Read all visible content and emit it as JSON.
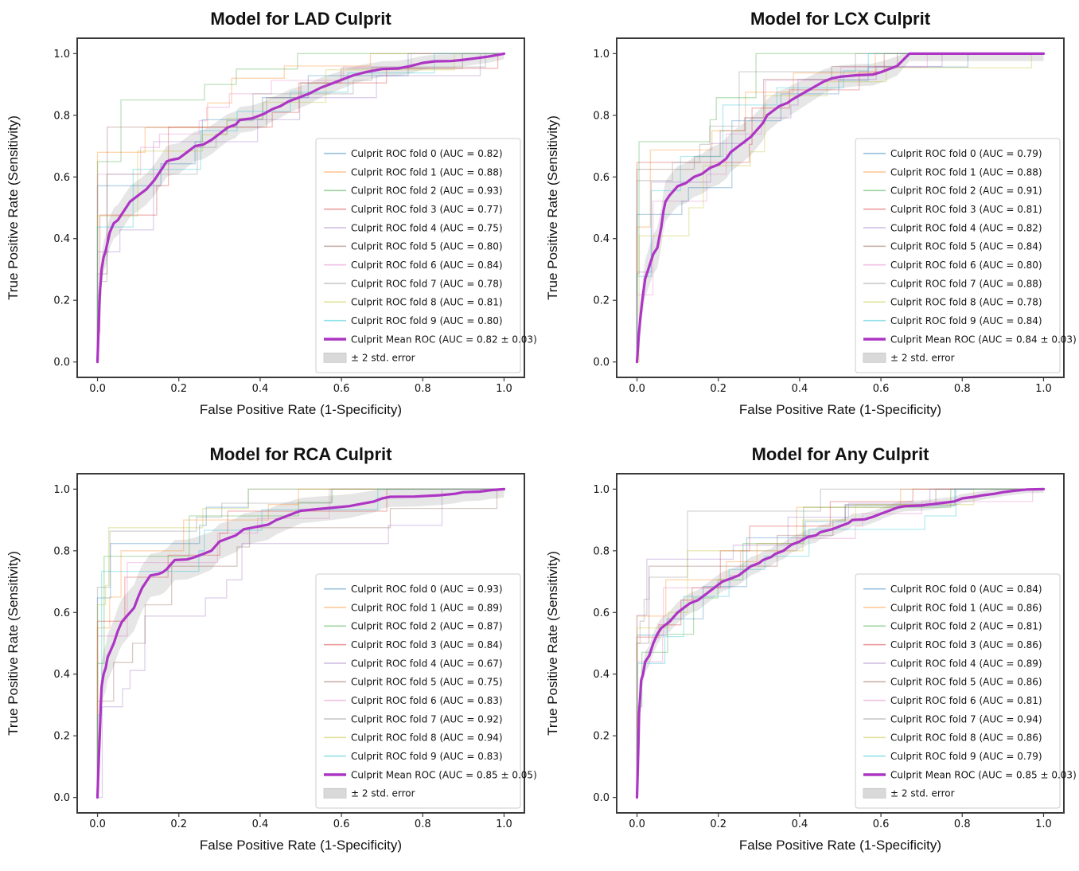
{
  "figure": {
    "background": "#ffffff",
    "tick_labels": [
      "0.0",
      "0.2",
      "0.4",
      "0.6",
      "0.8",
      "1.0"
    ],
    "tick_values": [
      0,
      0.2,
      0.4,
      0.6,
      0.8,
      1.0
    ],
    "colors": {
      "fold_palette": [
        "#1f77b4",
        "#ff7f0e",
        "#2ca02c",
        "#d62728",
        "#9467bd",
        "#8c564b",
        "#e377c2",
        "#7f7f7f",
        "#bcbd22",
        "#17becf"
      ],
      "mean_line": "#ad35c4",
      "band_fill": "#c3c3c3",
      "legend_band_swatch": "#d9d9d9",
      "spine": "#3a3a3a",
      "text": "#111111",
      "legend_border": "#cccccc"
    }
  },
  "chart_data": [
    {
      "type": "line",
      "title": "Model for LAD Culprit",
      "xlabel": "False Positive Rate (1-Specificity)",
      "ylabel": "True Positive Rate (Sensitivity)",
      "xlim": [
        -0.05,
        1.05
      ],
      "ylim": [
        -0.05,
        1.05
      ],
      "grid": false,
      "legend_position": "lower right",
      "folds": [
        {
          "label": "Culprit ROC fold 0 (AUC = 0.82)",
          "auc": 0.82
        },
        {
          "label": "Culprit ROC fold 1 (AUC = 0.88)",
          "auc": 0.88
        },
        {
          "label": "Culprit ROC fold 2 (AUC = 0.93)",
          "auc": 0.93
        },
        {
          "label": "Culprit ROC fold 3 (AUC = 0.77)",
          "auc": 0.77
        },
        {
          "label": "Culprit ROC fold 4 (AUC = 0.75)",
          "auc": 0.75
        },
        {
          "label": "Culprit ROC fold 5 (AUC = 0.80)",
          "auc": 0.8
        },
        {
          "label": "Culprit ROC fold 6 (AUC = 0.84)",
          "auc": 0.84
        },
        {
          "label": "Culprit ROC fold 7 (AUC = 0.78)",
          "auc": 0.78
        },
        {
          "label": "Culprit ROC fold 8 (AUC = 0.81)",
          "auc": 0.81
        },
        {
          "label": "Culprit ROC fold 9 (AUC = 0.80)",
          "auc": 0.8
        }
      ],
      "mean": {
        "label": "Culprit Mean ROC (AUC = 0.82 ± 0.03)",
        "auc": 0.82,
        "std": 0.03,
        "curve": [
          [
            0,
            0
          ],
          [
            0.004,
            0.16
          ],
          [
            0.006,
            0.23
          ],
          [
            0.01,
            0.3
          ],
          [
            0.015,
            0.34
          ],
          [
            0.02,
            0.36
          ],
          [
            0.03,
            0.42
          ],
          [
            0.04,
            0.45
          ],
          [
            0.05,
            0.46
          ],
          [
            0.06,
            0.48
          ],
          [
            0.07,
            0.5
          ],
          [
            0.08,
            0.52
          ],
          [
            0.1,
            0.54
          ],
          [
            0.12,
            0.56
          ],
          [
            0.13,
            0.575
          ],
          [
            0.14,
            0.59
          ],
          [
            0.15,
            0.61
          ],
          [
            0.16,
            0.63
          ],
          [
            0.17,
            0.65
          ],
          [
            0.18,
            0.655
          ],
          [
            0.2,
            0.66
          ],
          [
            0.22,
            0.68
          ],
          [
            0.24,
            0.7
          ],
          [
            0.26,
            0.705
          ],
          [
            0.28,
            0.72
          ],
          [
            0.3,
            0.74
          ],
          [
            0.32,
            0.76
          ],
          [
            0.34,
            0.77
          ],
          [
            0.35,
            0.785
          ],
          [
            0.38,
            0.79
          ],
          [
            0.41,
            0.805
          ],
          [
            0.43,
            0.82
          ],
          [
            0.45,
            0.83
          ],
          [
            0.47,
            0.845
          ],
          [
            0.5,
            0.86
          ],
          [
            0.52,
            0.87
          ],
          [
            0.55,
            0.89
          ],
          [
            0.58,
            0.905
          ],
          [
            0.6,
            0.915
          ],
          [
            0.63,
            0.93
          ],
          [
            0.66,
            0.94
          ],
          [
            0.7,
            0.95
          ],
          [
            0.74,
            0.952
          ],
          [
            0.77,
            0.96
          ],
          [
            0.8,
            0.97
          ],
          [
            0.83,
            0.975
          ],
          [
            0.87,
            0.976
          ],
          [
            0.9,
            0.98
          ],
          [
            0.93,
            0.985
          ],
          [
            0.96,
            0.99
          ],
          [
            0.98,
            0.995
          ],
          [
            1,
            1
          ]
        ]
      },
      "band": {
        "label": "± 2 std. error",
        "half_width": 0.05
      }
    },
    {
      "type": "line",
      "title": "Model for LCX Culprit",
      "xlabel": "False Positive Rate (1-Specificity)",
      "ylabel": "True Positive Rate (Sensitivity)",
      "xlim": [
        -0.05,
        1.05
      ],
      "ylim": [
        -0.05,
        1.05
      ],
      "grid": false,
      "legend_position": "lower right",
      "folds": [
        {
          "label": "Culprit ROC fold 0 (AUC = 0.79)",
          "auc": 0.79
        },
        {
          "label": "Culprit ROC fold 1 (AUC = 0.88)",
          "auc": 0.88
        },
        {
          "label": "Culprit ROC fold 2 (AUC = 0.91)",
          "auc": 0.91
        },
        {
          "label": "Culprit ROC fold 3 (AUC = 0.81)",
          "auc": 0.81
        },
        {
          "label": "Culprit ROC fold 4 (AUC = 0.82)",
          "auc": 0.82
        },
        {
          "label": "Culprit ROC fold 5 (AUC = 0.84)",
          "auc": 0.84
        },
        {
          "label": "Culprit ROC fold 6 (AUC = 0.80)",
          "auc": 0.8
        },
        {
          "label": "Culprit ROC fold 7 (AUC = 0.88)",
          "auc": 0.88
        },
        {
          "label": "Culprit ROC fold 8 (AUC = 0.78)",
          "auc": 0.78
        },
        {
          "label": "Culprit ROC fold 9 (AUC = 0.84)",
          "auc": 0.84
        }
      ],
      "mean": {
        "label": "Culprit Mean ROC (AUC = 0.84 ± 0.03)",
        "auc": 0.84,
        "std": 0.03,
        "curve": [
          [
            0,
            0
          ],
          [
            0.004,
            0.08
          ],
          [
            0.008,
            0.14
          ],
          [
            0.012,
            0.19
          ],
          [
            0.02,
            0.27
          ],
          [
            0.03,
            0.31
          ],
          [
            0.04,
            0.35
          ],
          [
            0.05,
            0.37
          ],
          [
            0.06,
            0.44
          ],
          [
            0.065,
            0.49
          ],
          [
            0.07,
            0.52
          ],
          [
            0.08,
            0.54
          ],
          [
            0.09,
            0.555
          ],
          [
            0.1,
            0.57
          ],
          [
            0.12,
            0.58
          ],
          [
            0.13,
            0.59
          ],
          [
            0.14,
            0.6
          ],
          [
            0.16,
            0.61
          ],
          [
            0.17,
            0.62
          ],
          [
            0.18,
            0.63
          ],
          [
            0.2,
            0.64
          ],
          [
            0.21,
            0.65
          ],
          [
            0.22,
            0.66
          ],
          [
            0.23,
            0.68
          ],
          [
            0.25,
            0.7
          ],
          [
            0.26,
            0.71
          ],
          [
            0.28,
            0.73
          ],
          [
            0.29,
            0.745
          ],
          [
            0.3,
            0.76
          ],
          [
            0.31,
            0.775
          ],
          [
            0.32,
            0.8
          ],
          [
            0.34,
            0.82
          ],
          [
            0.35,
            0.83
          ],
          [
            0.37,
            0.84
          ],
          [
            0.38,
            0.85
          ],
          [
            0.4,
            0.865
          ],
          [
            0.42,
            0.88
          ],
          [
            0.44,
            0.895
          ],
          [
            0.46,
            0.91
          ],
          [
            0.48,
            0.92
          ],
          [
            0.5,
            0.925
          ],
          [
            0.54,
            0.93
          ],
          [
            0.58,
            0.932
          ],
          [
            0.6,
            0.94
          ],
          [
            0.62,
            0.95
          ],
          [
            0.64,
            0.96
          ],
          [
            0.655,
            0.98
          ],
          [
            0.67,
            1.0
          ],
          [
            1,
            1
          ]
        ]
      },
      "band": {
        "label": "± 2 std. error",
        "half_width": 0.065
      }
    },
    {
      "type": "line",
      "title": "Model for RCA Culprit",
      "xlabel": "False Positive Rate (1-Specificity)",
      "ylabel": "True Positive Rate (Sensitivity)",
      "xlim": [
        -0.05,
        1.05
      ],
      "ylim": [
        -0.05,
        1.05
      ],
      "grid": false,
      "legend_position": "lower right",
      "folds": [
        {
          "label": "Culprit ROC fold 0 (AUC = 0.93)",
          "auc": 0.93
        },
        {
          "label": "Culprit ROC fold 1 (AUC = 0.89)",
          "auc": 0.89
        },
        {
          "label": "Culprit ROC fold 2 (AUC = 0.87)",
          "auc": 0.87
        },
        {
          "label": "Culprit ROC fold 3 (AUC = 0.84)",
          "auc": 0.84
        },
        {
          "label": "Culprit ROC fold 4 (AUC = 0.67)",
          "auc": 0.67
        },
        {
          "label": "Culprit ROC fold 5 (AUC = 0.75)",
          "auc": 0.75
        },
        {
          "label": "Culprit ROC fold 6 (AUC = 0.83)",
          "auc": 0.83
        },
        {
          "label": "Culprit ROC fold 7 (AUC = 0.92)",
          "auc": 0.92
        },
        {
          "label": "Culprit ROC fold 8 (AUC = 0.94)",
          "auc": 0.94
        },
        {
          "label": "Culprit ROC fold 9 (AUC = 0.83)",
          "auc": 0.83
        }
      ],
      "mean": {
        "label": "Culprit Mean ROC (AUC = 0.85 ± 0.05)",
        "auc": 0.85,
        "std": 0.05,
        "curve": [
          [
            0,
            0
          ],
          [
            0.003,
            0.12
          ],
          [
            0.006,
            0.22
          ],
          [
            0.008,
            0.3
          ],
          [
            0.01,
            0.36
          ],
          [
            0.015,
            0.4
          ],
          [
            0.02,
            0.42
          ],
          [
            0.025,
            0.455
          ],
          [
            0.03,
            0.47
          ],
          [
            0.04,
            0.5
          ],
          [
            0.05,
            0.54
          ],
          [
            0.06,
            0.57
          ],
          [
            0.07,
            0.585
          ],
          [
            0.08,
            0.6
          ],
          [
            0.09,
            0.615
          ],
          [
            0.1,
            0.65
          ],
          [
            0.11,
            0.68
          ],
          [
            0.12,
            0.7
          ],
          [
            0.13,
            0.72
          ],
          [
            0.15,
            0.725
          ],
          [
            0.16,
            0.73
          ],
          [
            0.17,
            0.74
          ],
          [
            0.18,
            0.755
          ],
          [
            0.19,
            0.77
          ],
          [
            0.22,
            0.772
          ],
          [
            0.24,
            0.78
          ],
          [
            0.26,
            0.79
          ],
          [
            0.28,
            0.8
          ],
          [
            0.29,
            0.815
          ],
          [
            0.3,
            0.83
          ],
          [
            0.32,
            0.84
          ],
          [
            0.34,
            0.85
          ],
          [
            0.36,
            0.87
          ],
          [
            0.38,
            0.875
          ],
          [
            0.4,
            0.88
          ],
          [
            0.42,
            0.885
          ],
          [
            0.44,
            0.9
          ],
          [
            0.46,
            0.91
          ],
          [
            0.48,
            0.92
          ],
          [
            0.5,
            0.93
          ],
          [
            0.54,
            0.935
          ],
          [
            0.58,
            0.94
          ],
          [
            0.62,
            0.945
          ],
          [
            0.64,
            0.95
          ],
          [
            0.66,
            0.955
          ],
          [
            0.68,
            0.96
          ],
          [
            0.7,
            0.97
          ],
          [
            0.72,
            0.975
          ],
          [
            0.78,
            0.976
          ],
          [
            0.84,
            0.98
          ],
          [
            0.88,
            0.985
          ],
          [
            0.9,
            0.99
          ],
          [
            0.94,
            0.992
          ],
          [
            0.97,
            0.997
          ],
          [
            1,
            1
          ]
        ]
      },
      "band": {
        "label": "± 2 std. error",
        "half_width": 0.075
      }
    },
    {
      "type": "line",
      "title": "Model for Any Culprit",
      "xlabel": "False Positive Rate (1-Specificity)",
      "ylabel": "True Positive Rate (Sensitivity)",
      "xlim": [
        -0.05,
        1.05
      ],
      "ylim": [
        -0.05,
        1.05
      ],
      "grid": false,
      "legend_position": "lower right",
      "folds": [
        {
          "label": "Culprit ROC fold 0 (AUC = 0.84)",
          "auc": 0.84
        },
        {
          "label": "Culprit ROC fold 1 (AUC = 0.86)",
          "auc": 0.86
        },
        {
          "label": "Culprit ROC fold 2 (AUC = 0.81)",
          "auc": 0.81
        },
        {
          "label": "Culprit ROC fold 3 (AUC = 0.86)",
          "auc": 0.86
        },
        {
          "label": "Culprit ROC fold 4 (AUC = 0.89)",
          "auc": 0.89
        },
        {
          "label": "Culprit ROC fold 5 (AUC = 0.86)",
          "auc": 0.86
        },
        {
          "label": "Culprit ROC fold 6 (AUC = 0.81)",
          "auc": 0.81
        },
        {
          "label": "Culprit ROC fold 7 (AUC = 0.94)",
          "auc": 0.94
        },
        {
          "label": "Culprit ROC fold 8 (AUC = 0.86)",
          "auc": 0.86
        },
        {
          "label": "Culprit ROC fold 9 (AUC = 0.79)",
          "auc": 0.79
        }
      ],
      "mean": {
        "label": "Culprit Mean ROC (AUC = 0.85 ± 0.03)",
        "auc": 0.85,
        "std": 0.03,
        "curve": [
          [
            0,
            0
          ],
          [
            0.003,
            0.15
          ],
          [
            0.005,
            0.27
          ],
          [
            0.008,
            0.33
          ],
          [
            0.01,
            0.38
          ],
          [
            0.015,
            0.4
          ],
          [
            0.02,
            0.44
          ],
          [
            0.03,
            0.46
          ],
          [
            0.04,
            0.5
          ],
          [
            0.05,
            0.53
          ],
          [
            0.06,
            0.55
          ],
          [
            0.07,
            0.56
          ],
          [
            0.08,
            0.57
          ],
          [
            0.09,
            0.585
          ],
          [
            0.1,
            0.6
          ],
          [
            0.12,
            0.62
          ],
          [
            0.13,
            0.63
          ],
          [
            0.15,
            0.64
          ],
          [
            0.16,
            0.65
          ],
          [
            0.18,
            0.67
          ],
          [
            0.19,
            0.68
          ],
          [
            0.2,
            0.69
          ],
          [
            0.21,
            0.7
          ],
          [
            0.23,
            0.71
          ],
          [
            0.25,
            0.72
          ],
          [
            0.26,
            0.73
          ],
          [
            0.28,
            0.75
          ],
          [
            0.3,
            0.76
          ],
          [
            0.31,
            0.77
          ],
          [
            0.33,
            0.78
          ],
          [
            0.34,
            0.79
          ],
          [
            0.36,
            0.8
          ],
          [
            0.37,
            0.81
          ],
          [
            0.38,
            0.82
          ],
          [
            0.4,
            0.83
          ],
          [
            0.42,
            0.845
          ],
          [
            0.44,
            0.85
          ],
          [
            0.45,
            0.86
          ],
          [
            0.48,
            0.87
          ],
          [
            0.5,
            0.88
          ],
          [
            0.52,
            0.89
          ],
          [
            0.53,
            0.9
          ],
          [
            0.56,
            0.902
          ],
          [
            0.58,
            0.91
          ],
          [
            0.6,
            0.92
          ],
          [
            0.62,
            0.93
          ],
          [
            0.64,
            0.94
          ],
          [
            0.66,
            0.945
          ],
          [
            0.7,
            0.947
          ],
          [
            0.72,
            0.95
          ],
          [
            0.75,
            0.955
          ],
          [
            0.78,
            0.96
          ],
          [
            0.8,
            0.97
          ],
          [
            0.83,
            0.975
          ],
          [
            0.85,
            0.98
          ],
          [
            0.88,
            0.985
          ],
          [
            0.9,
            0.99
          ],
          [
            0.93,
            0.995
          ],
          [
            0.96,
            0.999
          ],
          [
            1,
            1
          ]
        ]
      },
      "band": {
        "label": "± 2 std. error",
        "half_width": 0.033
      }
    }
  ]
}
